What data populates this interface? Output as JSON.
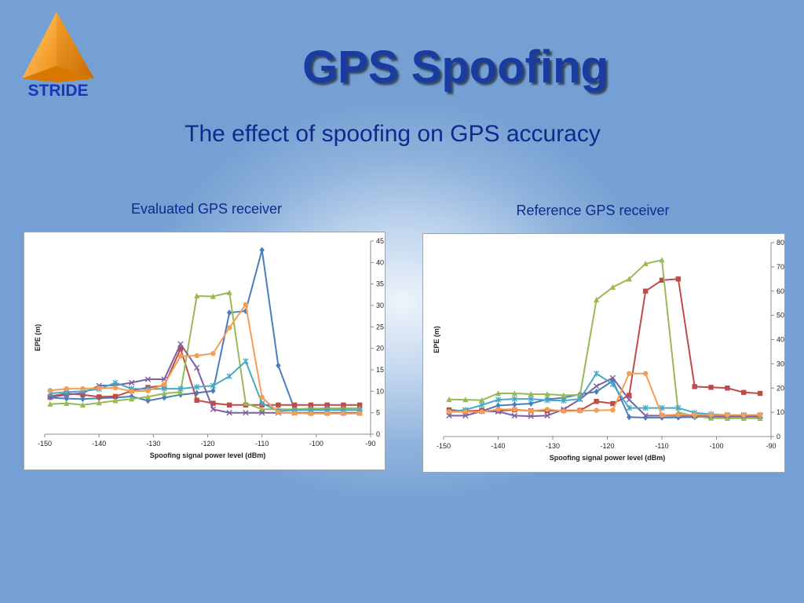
{
  "logo": {
    "text": "STRIDE",
    "icon": "orange-pyramid-icon"
  },
  "slide": {
    "title": "GPS Spoofing",
    "subtitle": "The effect of spoofing on GPS accuracy"
  },
  "chart_data": [
    {
      "type": "line",
      "caption": "Evaluated GPS receiver",
      "xlabel": "Spoofing signal power level (dBm)",
      "ylabel": "EPE (m)",
      "xlim": [
        -150,
        -90
      ],
      "ylim": [
        0,
        45
      ],
      "xticks": [
        -150,
        -140,
        -130,
        -120,
        -110,
        -100,
        -90
      ],
      "yticks": [
        0,
        5,
        10,
        15,
        20,
        25,
        30,
        35,
        40,
        45
      ],
      "grid": false,
      "x": [
        -149,
        -146,
        -143,
        -140,
        -137,
        -134,
        -131,
        -128,
        -125,
        -122,
        -119,
        -116,
        -113,
        -110,
        -107,
        -104,
        -101,
        -98,
        -95,
        -92
      ],
      "series": [
        {
          "color": "#4a7ebb",
          "marker": "diamond",
          "values": [
            8.5,
            8.3,
            8.2,
            8.4,
            8.5,
            8.8,
            7.8,
            8.5,
            9.2,
            9.6,
            10.1,
            28.3,
            28.7,
            42.9,
            16.0,
            5.8,
            5.9,
            6.0,
            6.0,
            6.0
          ]
        },
        {
          "color": "#be4b48",
          "marker": "square",
          "values": [
            8.8,
            9.5,
            9.2,
            8.7,
            8.8,
            10.1,
            10.9,
            11.3,
            19.9,
            7.9,
            7.2,
            6.8,
            6.8,
            6.8,
            6.8,
            6.8,
            6.8,
            6.8,
            6.8,
            6.8
          ]
        },
        {
          "color": "#98b954",
          "marker": "triangle",
          "values": [
            7.0,
            7.2,
            6.8,
            7.3,
            7.8,
            8.2,
            8.7,
            9.5,
            9.8,
            32.2,
            32.1,
            33.0,
            7.2,
            5.8,
            5.8,
            5.8,
            6.0,
            6.0,
            6.0,
            6.0
          ]
        },
        {
          "color": "#7d60a0",
          "marker": "x",
          "values": [
            8.6,
            9.2,
            9.6,
            11.3,
            11.4,
            12.0,
            12.8,
            12.8,
            21.0,
            15.5,
            5.8,
            5.0,
            5.0,
            5.0,
            5.0,
            5.0,
            5.0,
            5.0,
            5.0,
            5.0
          ]
        },
        {
          "color": "#46aac5",
          "marker": "star",
          "values": [
            9.5,
            9.8,
            10.0,
            10.5,
            12.0,
            10.6,
            10.5,
            10.6,
            10.6,
            11.0,
            11.3,
            13.5,
            17.0,
            7.2,
            5.4,
            5.6,
            5.6,
            5.6,
            5.6,
            5.6
          ]
        },
        {
          "color": "#f59d56",
          "marker": "circle",
          "values": [
            10.2,
            10.6,
            10.6,
            10.7,
            10.8,
            10.0,
            10.1,
            11.6,
            18.2,
            18.3,
            18.8,
            24.8,
            30.2,
            8.6,
            5.1,
            4.9,
            4.8,
            4.8,
            4.8,
            4.8
          ]
        }
      ]
    },
    {
      "type": "line",
      "caption": "Reference GPS receiver",
      "xlabel": "Spoofing signal power level (dBm)",
      "ylabel": "EPE (m)",
      "xlim": [
        -150,
        -90
      ],
      "ylim": [
        0,
        80
      ],
      "xticks": [
        -150,
        -140,
        -130,
        -120,
        -110,
        -100,
        -90
      ],
      "yticks": [
        0,
        10,
        20,
        30,
        40,
        50,
        60,
        70,
        80
      ],
      "grid": false,
      "x": [
        -149,
        -146,
        -143,
        -140,
        -137,
        -134,
        -131,
        -128,
        -125,
        -122,
        -119,
        -116,
        -113,
        -110,
        -107,
        -104,
        -101,
        -98,
        -95,
        -92
      ],
      "series": [
        {
          "color": "#4a7ebb",
          "marker": "diamond",
          "values": [
            10.2,
            10.3,
            10.5,
            12.8,
            13.2,
            13.6,
            15.4,
            16.0,
            17.5,
            18.5,
            23.0,
            8.0,
            7.8,
            7.8,
            7.9,
            8.0,
            8.2,
            8.2,
            8.2,
            8.2
          ]
        },
        {
          "color": "#be4b48",
          "marker": "square",
          "values": [
            11.0,
            10.5,
            10.8,
            10.6,
            11.0,
            10.6,
            10.6,
            10.8,
            10.8,
            14.5,
            13.6,
            17.0,
            60.0,
            64.5,
            65.0,
            20.6,
            20.3,
            20.0,
            18.2,
            17.8
          ]
        },
        {
          "color": "#98b954",
          "marker": "triangle",
          "values": [
            15.3,
            15.2,
            15.0,
            17.8,
            17.8,
            17.5,
            17.5,
            17.0,
            17.2,
            56.4,
            61.6,
            65.0,
            71.3,
            72.8,
            10.0,
            8.4,
            7.6,
            7.5,
            7.5,
            7.5
          ]
        },
        {
          "color": "#7d60a0",
          "marker": "x",
          "values": [
            8.6,
            8.6,
            10.5,
            10.3,
            8.6,
            8.4,
            8.6,
            11.2,
            15.4,
            20.8,
            24.2,
            15.2,
            8.6,
            8.6,
            8.6,
            8.6,
            8.5,
            8.5,
            8.5,
            8.5
          ]
        },
        {
          "color": "#46aac5",
          "marker": "star",
          "values": [
            10.2,
            11.0,
            13.0,
            15.2,
            15.5,
            15.5,
            15.0,
            14.8,
            15.5,
            26.0,
            21.6,
            11.8,
            11.8,
            11.8,
            11.8,
            9.8,
            9.2,
            8.9,
            8.9,
            8.9
          ]
        },
        {
          "color": "#f59d56",
          "marker": "circle",
          "values": [
            10.2,
            10.2,
            10.2,
            11.2,
            11.2,
            10.6,
            11.2,
            10.5,
            10.6,
            10.8,
            10.9,
            26.0,
            26.0,
            8.8,
            9.0,
            9.0,
            8.9,
            8.9,
            8.9,
            8.9
          ]
        }
      ]
    }
  ]
}
